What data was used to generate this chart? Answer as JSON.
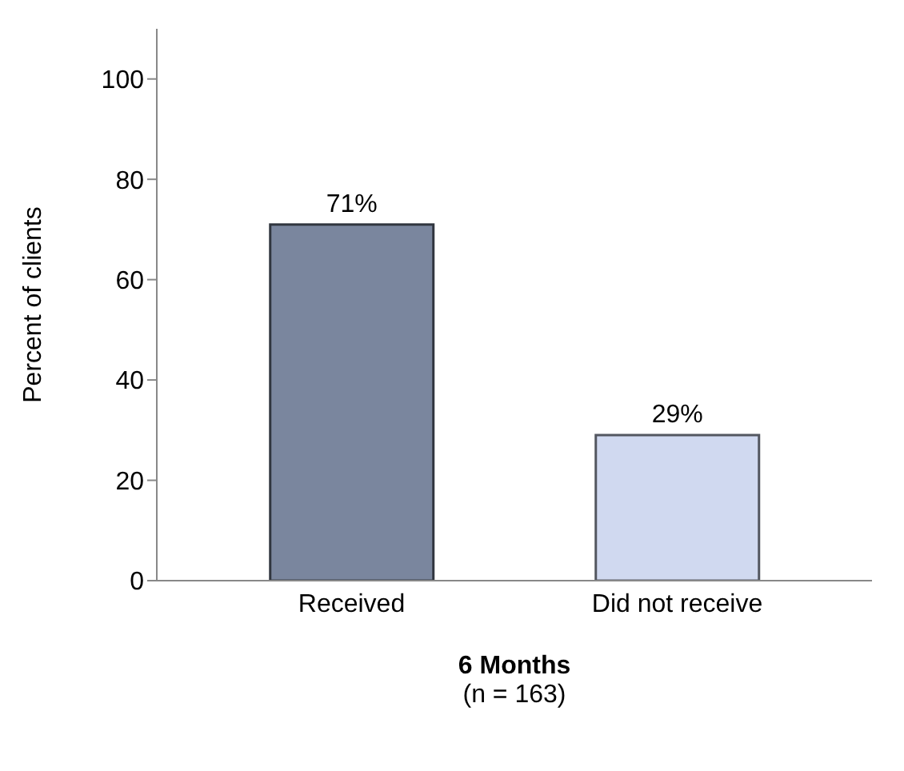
{
  "chart_data": {
    "type": "bar",
    "categories": [
      "Received",
      "Did not receive"
    ],
    "values": [
      71,
      29
    ],
    "colors": [
      "#7a869e",
      "#d0d9f0"
    ],
    "value_labels": [
      "71%",
      "29%"
    ],
    "ylabel": "Percent of clients",
    "xlabel": "6 Months",
    "annotations": [
      "(n = 163)"
    ],
    "ylim": [
      0,
      110
    ],
    "yticks": [
      0,
      20,
      40,
      60,
      80,
      100
    ],
    "grid": false,
    "legend": false
  }
}
